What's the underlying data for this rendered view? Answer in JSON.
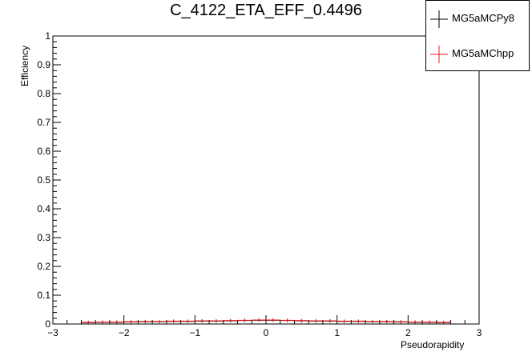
{
  "chart_data": {
    "type": "scatter",
    "title": "C_4122_ETA_EFF_0.4496",
    "xlabel": "Pseudorapidity",
    "ylabel": "Efficiency",
    "xlim": [
      -3,
      3
    ],
    "ylim": [
      0,
      1
    ],
    "x_ticks": [
      "−3",
      "−2",
      "−1",
      "0",
      "1",
      "2",
      "3"
    ],
    "y_ticks": [
      "0",
      "0.1",
      "0.2",
      "0.3",
      "0.4",
      "0.5",
      "0.6",
      "0.7",
      "0.8",
      "0.9",
      "1"
    ],
    "grid": false,
    "legend_position": "top-right",
    "x": [
      -2.5,
      -2.3,
      -2.1,
      -1.9,
      -1.7,
      -1.5,
      -1.3,
      -1.1,
      -0.9,
      -0.7,
      -0.5,
      -0.3,
      -0.1,
      0.1,
      0.3,
      0.5,
      0.7,
      0.9,
      1.1,
      1.3,
      1.5,
      1.7,
      1.9,
      2.1,
      2.3,
      2.5
    ],
    "series": [
      {
        "name": "MG5aMCPy8",
        "color": "#000000",
        "values": [
          0.005,
          0.006,
          0.006,
          0.007,
          0.008,
          0.008,
          0.009,
          0.009,
          0.01,
          0.01,
          0.011,
          0.012,
          0.013,
          0.013,
          0.012,
          0.011,
          0.01,
          0.01,
          0.009,
          0.009,
          0.008,
          0.008,
          0.007,
          0.006,
          0.006,
          0.005
        ]
      },
      {
        "name": "MG5aMChpp",
        "color": "#e8191c",
        "values": [
          0.006,
          0.007,
          0.007,
          0.008,
          0.009,
          0.009,
          0.01,
          0.01,
          0.011,
          0.011,
          0.012,
          0.013,
          0.014,
          0.014,
          0.013,
          0.012,
          0.011,
          0.011,
          0.01,
          0.01,
          0.009,
          0.009,
          0.008,
          0.007,
          0.007,
          0.006
        ]
      }
    ]
  }
}
